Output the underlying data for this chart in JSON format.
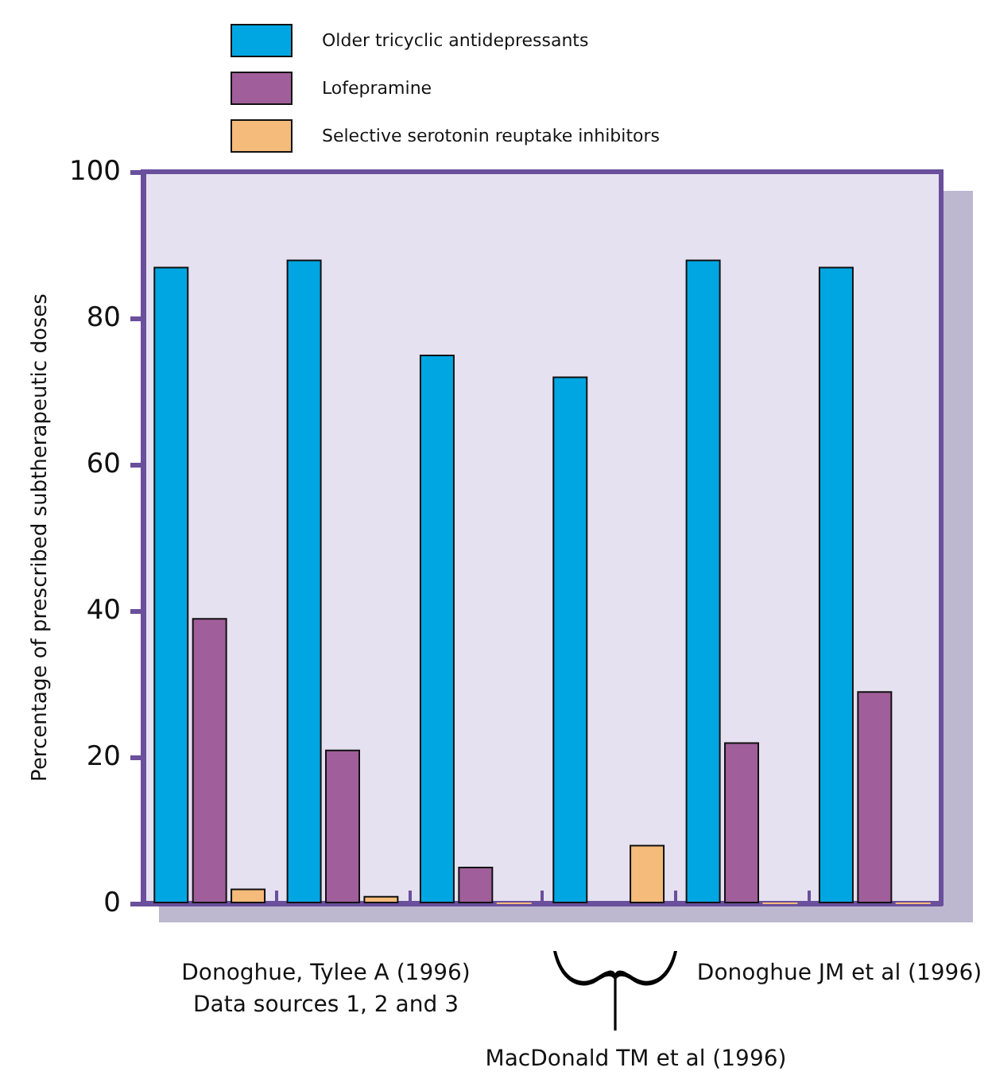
{
  "chart_data": {
    "type": "bar",
    "ylabel": "Percentage of prescribed subtherapeutic doses",
    "categories": [
      null,
      null,
      null,
      null,
      null,
      null
    ],
    "series": [
      {
        "name": "Older tricyclic antidepressants",
        "color": "#00a6e2",
        "values": [
          87,
          88,
          75,
          72,
          88,
          87
        ]
      },
      {
        "name": "Lofepramine",
        "color": "#a05e9a",
        "values": [
          39,
          21,
          5,
          null,
          22,
          29
        ]
      },
      {
        "name": "Selective serotonin reuptake inhibitors",
        "color": "#f5bb7a",
        "values": [
          2,
          1,
          0,
          8,
          0,
          0
        ]
      }
    ],
    "ylim": [
      0,
      100
    ],
    "yticks": [
      0,
      20,
      40,
      60,
      80,
      100
    ],
    "grid": false,
    "legend": "top",
    "annotations": [
      "Donoghue, Tylee A (1996)",
      "Data sources 1, 2 and 3",
      "MacDonald TM et al (1996)",
      "Donoghue JM et al (1996)"
    ]
  }
}
